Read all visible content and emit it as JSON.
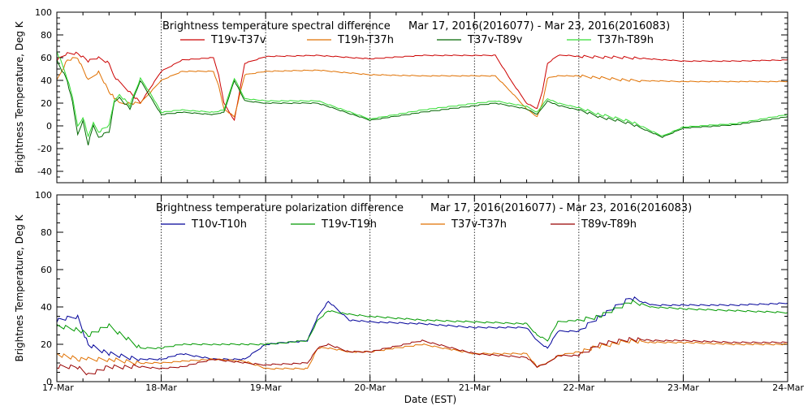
{
  "figure": {
    "xlabel": "Date (EST)",
    "x_ticks": [
      "17-Mar",
      "18-Mar",
      "19-Mar",
      "20-Mar",
      "21-Mar",
      "22-Mar",
      "23-Mar",
      "24-Mar"
    ]
  },
  "chart_data": [
    {
      "type": "line",
      "title": "Brightness temperature spectral difference",
      "date_range": "Mar 17, 2016(2016077) - Mar 23, 2016(2016083)",
      "ylabel": "Brightness Temperature, Deg K",
      "ylim": [
        -50,
        100
      ],
      "yticks": [
        -40,
        -20,
        0,
        20,
        40,
        60,
        80,
        100
      ],
      "xlim": [
        "17-Mar",
        "24-Mar"
      ],
      "x_unit": "days since 17-Mar",
      "grid": "vertical dotted at day boundaries",
      "legend_placement": "top",
      "series": [
        {
          "name": "T19v-T37v",
          "color": "#cc0000",
          "x": [
            0,
            0.1,
            0.2,
            0.3,
            0.4,
            0.5,
            0.55,
            0.6,
            0.7,
            0.8,
            1.0,
            1.2,
            1.5,
            1.55,
            1.6,
            1.7,
            1.8,
            2.0,
            2.5,
            3.0,
            3.5,
            4.2,
            4.35,
            4.5,
            4.6,
            4.65,
            4.7,
            4.8,
            4.9,
            5.0,
            5.5,
            6.0,
            6.5,
            7.0
          ],
          "y": [
            58,
            64,
            64,
            57,
            60,
            55,
            44,
            38,
            30,
            20,
            48,
            58,
            60,
            45,
            20,
            5,
            55,
            61,
            62,
            59,
            62,
            62,
            40,
            20,
            15,
            30,
            55,
            62,
            62,
            61,
            60,
            57,
            57,
            58
          ]
        },
        {
          "name": "T19h-T37h",
          "color": "#e07000",
          "x": [
            0,
            0.1,
            0.2,
            0.3,
            0.4,
            0.5,
            0.55,
            0.6,
            0.7,
            0.8,
            1.0,
            1.2,
            1.5,
            1.55,
            1.6,
            1.7,
            1.8,
            2.0,
            2.5,
            3.0,
            3.5,
            4.2,
            4.35,
            4.5,
            4.6,
            4.65,
            4.7,
            4.8,
            4.9,
            5.0,
            5.5,
            6.0,
            6.5,
            7.0
          ],
          "y": [
            40,
            58,
            60,
            40,
            48,
            30,
            25,
            20,
            20,
            20,
            40,
            48,
            48,
            35,
            15,
            8,
            45,
            48,
            49,
            45,
            44,
            44,
            30,
            15,
            8,
            20,
            42,
            44,
            44,
            44,
            40,
            39,
            39,
            39
          ]
        },
        {
          "name": "T37v-T89v",
          "color": "#006600",
          "x": [
            0,
            0.1,
            0.15,
            0.2,
            0.25,
            0.3,
            0.35,
            0.4,
            0.5,
            0.55,
            0.6,
            0.7,
            0.8,
            0.9,
            1.0,
            1.2,
            1.5,
            1.6,
            1.7,
            1.8,
            2.0,
            2.5,
            3.0,
            3.5,
            4.2,
            4.5,
            4.6,
            4.7,
            4.8,
            5.0,
            5.2,
            5.5,
            5.8,
            6.0,
            6.5,
            7.0
          ],
          "y": [
            58,
            40,
            20,
            -8,
            5,
            -16,
            0,
            -10,
            -5,
            20,
            25,
            15,
            40,
            25,
            10,
            12,
            10,
            12,
            40,
            22,
            20,
            20,
            5,
            12,
            20,
            15,
            10,
            22,
            18,
            14,
            8,
            2,
            -10,
            -2,
            1,
            8
          ]
        },
        {
          "name": "T37h-T89h",
          "color": "#33dd33",
          "x": [
            0,
            0.1,
            0.15,
            0.2,
            0.25,
            0.3,
            0.35,
            0.4,
            0.5,
            0.55,
            0.6,
            0.7,
            0.8,
            0.9,
            1.0,
            1.2,
            1.5,
            1.6,
            1.7,
            1.8,
            2.0,
            2.5,
            3.0,
            3.5,
            4.2,
            4.5,
            4.6,
            4.7,
            4.8,
            5.0,
            5.2,
            5.5,
            5.8,
            6.0,
            6.5,
            7.0
          ],
          "y": [
            66,
            42,
            25,
            0,
            8,
            -10,
            3,
            -5,
            0,
            22,
            28,
            18,
            42,
            28,
            12,
            14,
            12,
            14,
            42,
            24,
            22,
            22,
            6,
            14,
            22,
            17,
            12,
            24,
            20,
            16,
            10,
            4,
            -9,
            -1,
            2,
            10
          ]
        }
      ]
    },
    {
      "type": "line",
      "title": "Brightness temperature polarization difference",
      "date_range": "Mar 17, 2016(2016077) - Mar 23, 2016(2016083)",
      "ylabel": "Brightnes Temperature, Deg K",
      "ylim": [
        0,
        100
      ],
      "yticks": [
        0,
        20,
        40,
        60,
        80,
        100
      ],
      "xlim": [
        "17-Mar",
        "24-Mar"
      ],
      "x_unit": "days since 17-Mar",
      "grid": "vertical dotted at day boundaries",
      "legend_placement": "top",
      "series": [
        {
          "name": "T10v-T10h",
          "color": "#000099",
          "x": [
            0,
            0.2,
            0.3,
            0.5,
            0.8,
            1.0,
            1.2,
            1.5,
            1.8,
            2.0,
            2.4,
            2.5,
            2.6,
            2.8,
            3.0,
            3.5,
            4.0,
            4.5,
            4.6,
            4.7,
            4.8,
            5.0,
            5.2,
            5.5,
            5.7,
            6.0,
            6.5,
            7.0
          ],
          "y": [
            33,
            35,
            20,
            15,
            12,
            12,
            15,
            12,
            12,
            20,
            22,
            35,
            43,
            33,
            32,
            31,
            29,
            29,
            22,
            18,
            27,
            27,
            35,
            45,
            41,
            41,
            41,
            42
          ]
        },
        {
          "name": "T19v-T19h",
          "color": "#009900",
          "x": [
            0,
            0.2,
            0.3,
            0.5,
            0.8,
            1.0,
            1.2,
            1.5,
            1.8,
            2.0,
            2.4,
            2.5,
            2.6,
            2.8,
            3.0,
            3.5,
            4.0,
            4.5,
            4.6,
            4.7,
            4.8,
            5.0,
            5.2,
            5.5,
            5.7,
            6.0,
            6.5,
            7.0
          ],
          "y": [
            30,
            28,
            25,
            30,
            18,
            18,
            20,
            20,
            20,
            20,
            22,
            33,
            38,
            36,
            35,
            33,
            32,
            31,
            25,
            22,
            32,
            33,
            35,
            43,
            40,
            39,
            38,
            37
          ]
        },
        {
          "name": "T37v-T37h",
          "color": "#e07000",
          "x": [
            0,
            0.2,
            0.3,
            0.5,
            0.8,
            1.0,
            1.2,
            1.5,
            1.8,
            2.0,
            2.4,
            2.5,
            2.6,
            2.8,
            3.0,
            3.5,
            4.0,
            4.5,
            4.6,
            4.7,
            4.8,
            5.0,
            5.2,
            5.5,
            5.7,
            6.0,
            6.5,
            7.0
          ],
          "y": [
            15,
            12,
            12,
            12,
            10,
            10,
            11,
            12,
            11,
            7,
            7,
            18,
            18,
            16,
            16,
            20,
            15,
            15,
            8,
            10,
            14,
            16,
            19,
            22,
            21,
            21,
            20,
            20
          ]
        },
        {
          "name": "T89v-T89h",
          "color": "#990000",
          "x": [
            0,
            0.2,
            0.3,
            0.5,
            0.8,
            1.0,
            1.2,
            1.5,
            1.8,
            2.0,
            2.4,
            2.5,
            2.6,
            2.8,
            3.0,
            3.5,
            4.0,
            4.5,
            4.6,
            4.7,
            4.8,
            5.0,
            5.2,
            5.5,
            5.7,
            6.0,
            6.5,
            7.0
          ],
          "y": [
            8,
            8,
            4,
            8,
            8,
            7,
            8,
            12,
            10,
            9,
            10,
            18,
            20,
            16,
            16,
            22,
            15,
            13,
            8,
            10,
            14,
            14,
            20,
            23,
            22,
            22,
            21,
            21
          ]
        }
      ]
    }
  ]
}
